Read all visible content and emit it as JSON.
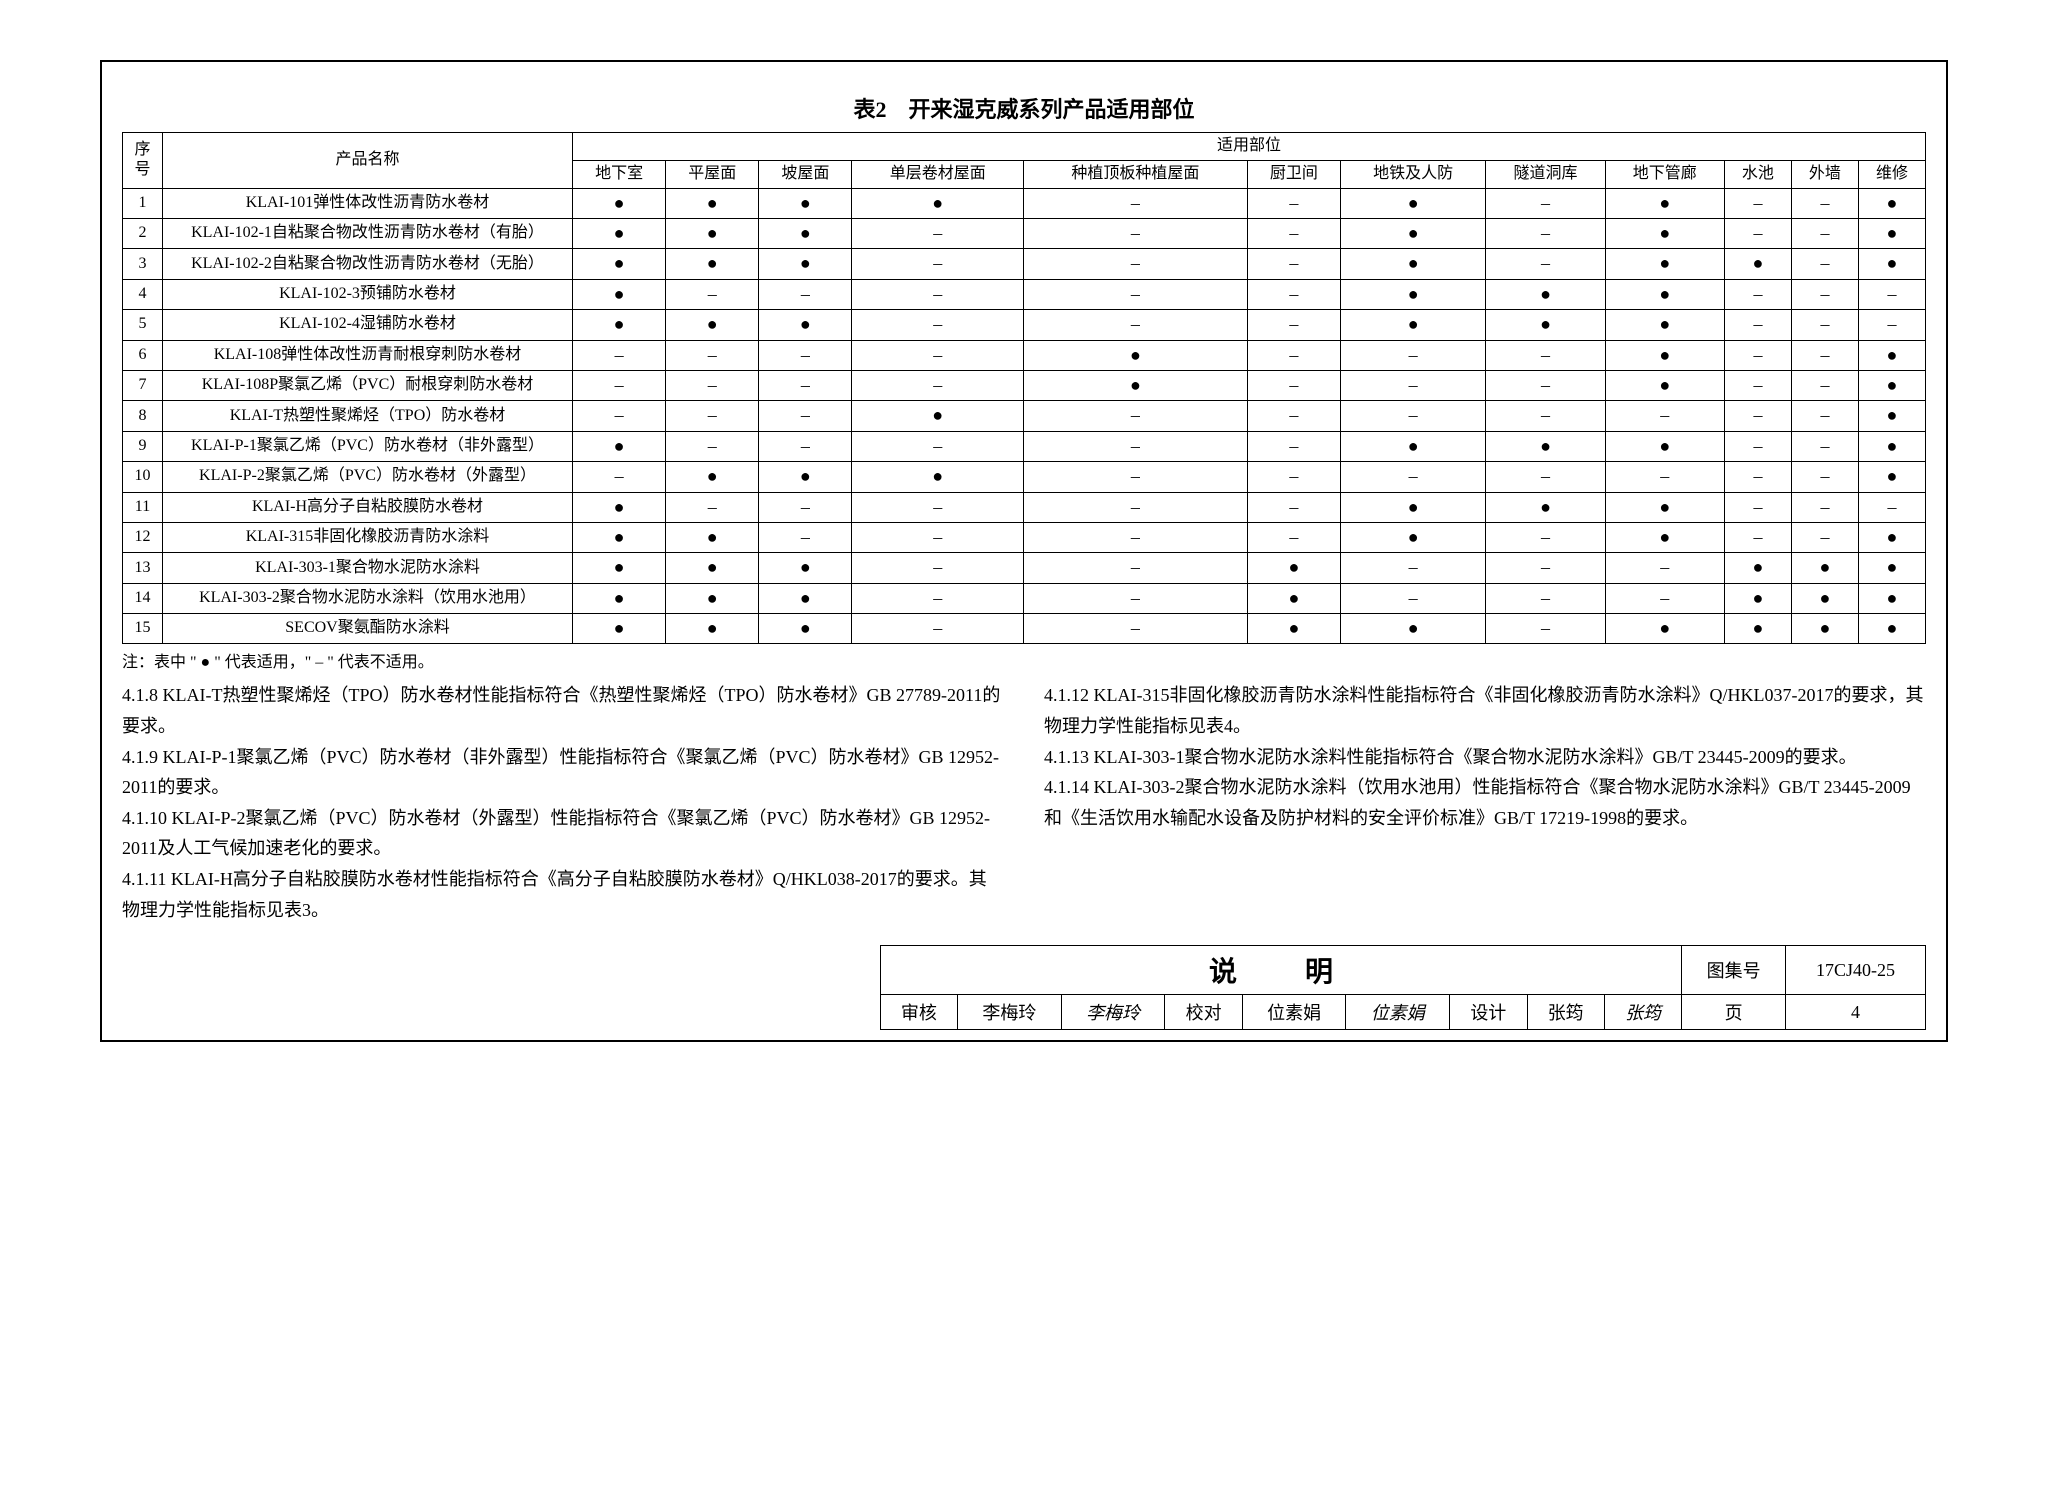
{
  "table": {
    "title": "表2　开来湿克威系列产品适用部位",
    "header_seq": "序号",
    "header_name": "产品名称",
    "header_group": "适用部位",
    "columns": [
      "地下室",
      "平屋面",
      "坡屋面",
      "单层卷材屋面",
      "种植顶板种植屋面",
      "厨卫间",
      "地铁及人防",
      "隧道洞库",
      "地下管廊",
      "水池",
      "外墙",
      "维修"
    ],
    "rows": [
      {
        "seq": "1",
        "name": "KLAI-101弹性体改性沥青防水卷材",
        "v": [
          "●",
          "●",
          "●",
          "●",
          "–",
          "–",
          "●",
          "–",
          "●",
          "–",
          "–",
          "●"
        ]
      },
      {
        "seq": "2",
        "name": "KLAI-102-1自粘聚合物改性沥青防水卷材（有胎）",
        "v": [
          "●",
          "●",
          "●",
          "–",
          "–",
          "–",
          "●",
          "–",
          "●",
          "–",
          "–",
          "●"
        ]
      },
      {
        "seq": "3",
        "name": "KLAI-102-2自粘聚合物改性沥青防水卷材（无胎）",
        "v": [
          "●",
          "●",
          "●",
          "–",
          "–",
          "–",
          "●",
          "–",
          "●",
          "●",
          "–",
          "●"
        ]
      },
      {
        "seq": "4",
        "name": "KLAI-102-3预铺防水卷材",
        "v": [
          "●",
          "–",
          "–",
          "–",
          "–",
          "–",
          "●",
          "●",
          "●",
          "–",
          "–",
          "–"
        ]
      },
      {
        "seq": "5",
        "name": "KLAI-102-4湿铺防水卷材",
        "v": [
          "●",
          "●",
          "●",
          "–",
          "–",
          "–",
          "●",
          "●",
          "●",
          "–",
          "–",
          "–"
        ]
      },
      {
        "seq": "6",
        "name": "KLAI-108弹性体改性沥青耐根穿刺防水卷材",
        "v": [
          "–",
          "–",
          "–",
          "–",
          "●",
          "–",
          "–",
          "–",
          "●",
          "–",
          "–",
          "●"
        ]
      },
      {
        "seq": "7",
        "name": "KLAI-108P聚氯乙烯（PVC）耐根穿刺防水卷材",
        "v": [
          "–",
          "–",
          "–",
          "–",
          "●",
          "–",
          "–",
          "–",
          "●",
          "–",
          "–",
          "●"
        ]
      },
      {
        "seq": "8",
        "name": "KLAI-T热塑性聚烯烃（TPO）防水卷材",
        "v": [
          "–",
          "–",
          "–",
          "●",
          "–",
          "–",
          "–",
          "–",
          "–",
          "–",
          "–",
          "●"
        ]
      },
      {
        "seq": "9",
        "name": "KLAI-P-1聚氯乙烯（PVC）防水卷材（非外露型）",
        "v": [
          "●",
          "–",
          "–",
          "–",
          "–",
          "–",
          "●",
          "●",
          "●",
          "–",
          "–",
          "●"
        ]
      },
      {
        "seq": "10",
        "name": "KLAI-P-2聚氯乙烯（PVC）防水卷材（外露型）",
        "v": [
          "–",
          "●",
          "●",
          "●",
          "–",
          "–",
          "–",
          "–",
          "–",
          "–",
          "–",
          "●"
        ]
      },
      {
        "seq": "11",
        "name": "KLAI-H高分子自粘胶膜防水卷材",
        "v": [
          "●",
          "–",
          "–",
          "–",
          "–",
          "–",
          "●",
          "●",
          "●",
          "–",
          "–",
          "–"
        ]
      },
      {
        "seq": "12",
        "name": "KLAI-315非固化橡胶沥青防水涂料",
        "v": [
          "●",
          "●",
          "–",
          "–",
          "–",
          "–",
          "●",
          "–",
          "●",
          "–",
          "–",
          "●"
        ]
      },
      {
        "seq": "13",
        "name": "KLAI-303-1聚合物水泥防水涂料",
        "v": [
          "●",
          "●",
          "●",
          "–",
          "–",
          "●",
          "–",
          "–",
          "–",
          "●",
          "●",
          "●"
        ]
      },
      {
        "seq": "14",
        "name": "KLAI-303-2聚合物水泥防水涂料（饮用水池用）",
        "v": [
          "●",
          "●",
          "●",
          "–",
          "–",
          "●",
          "–",
          "–",
          "–",
          "●",
          "●",
          "●"
        ]
      },
      {
        "seq": "15",
        "name": "SECOV聚氨酯防水涂料",
        "v": [
          "●",
          "●",
          "●",
          "–",
          "–",
          "●",
          "●",
          "–",
          "●",
          "●",
          "●",
          "●"
        ]
      }
    ],
    "note": "注：表中 \" ● \" 代表适用，\" – \" 代表不适用。"
  },
  "paragraphs": {
    "left": [
      "4.1.8 KLAI-T热塑性聚烯烃（TPO）防水卷材性能指标符合《热塑性聚烯烃（TPO）防水卷材》GB 27789-2011的要求。",
      "4.1.9 KLAI-P-1聚氯乙烯（PVC）防水卷材（非外露型）性能指标符合《聚氯乙烯（PVC）防水卷材》GB 12952-2011的要求。",
      "4.1.10 KLAI-P-2聚氯乙烯（PVC）防水卷材（外露型）性能指标符合《聚氯乙烯（PVC）防水卷材》GB 12952-2011及人工气候加速老化的要求。",
      "4.1.11 KLAI-H高分子自粘胶膜防水卷材性能指标符合《高分子自粘胶膜防水卷材》Q/HKL038-2017的要求。其物理力学性能指标见表3。"
    ],
    "right": [
      "4.1.12 KLAI-315非固化橡胶沥青防水涂料性能指标符合《非固化橡胶沥青防水涂料》Q/HKL037-2017的要求，其物理力学性能指标见表4。",
      "4.1.13 KLAI-303-1聚合物水泥防水涂料性能指标符合《聚合物水泥防水涂料》GB/T 23445-2009的要求。",
      "4.1.14 KLAI-303-2聚合物水泥防水涂料（饮用水池用）性能指标符合《聚合物水泥防水涂料》GB/T 23445-2009和《生活饮用水输配水设备及防护材料的安全评价标准》GB/T 17219-1998的要求。"
    ]
  },
  "footer": {
    "title": "说　明",
    "atlas_label": "图集号",
    "atlas_no": "17CJ40-25",
    "审核_label": "审核",
    "审核_name": "李梅玲",
    "审核_sig": "李梅玲",
    "校对_label": "校对",
    "校对_name": "位素娟",
    "校对_sig": "位素娟",
    "设计_label": "设计",
    "设计_name": "张筠",
    "设计_sig": "张筠",
    "page_label": "页",
    "page_no": "4"
  }
}
